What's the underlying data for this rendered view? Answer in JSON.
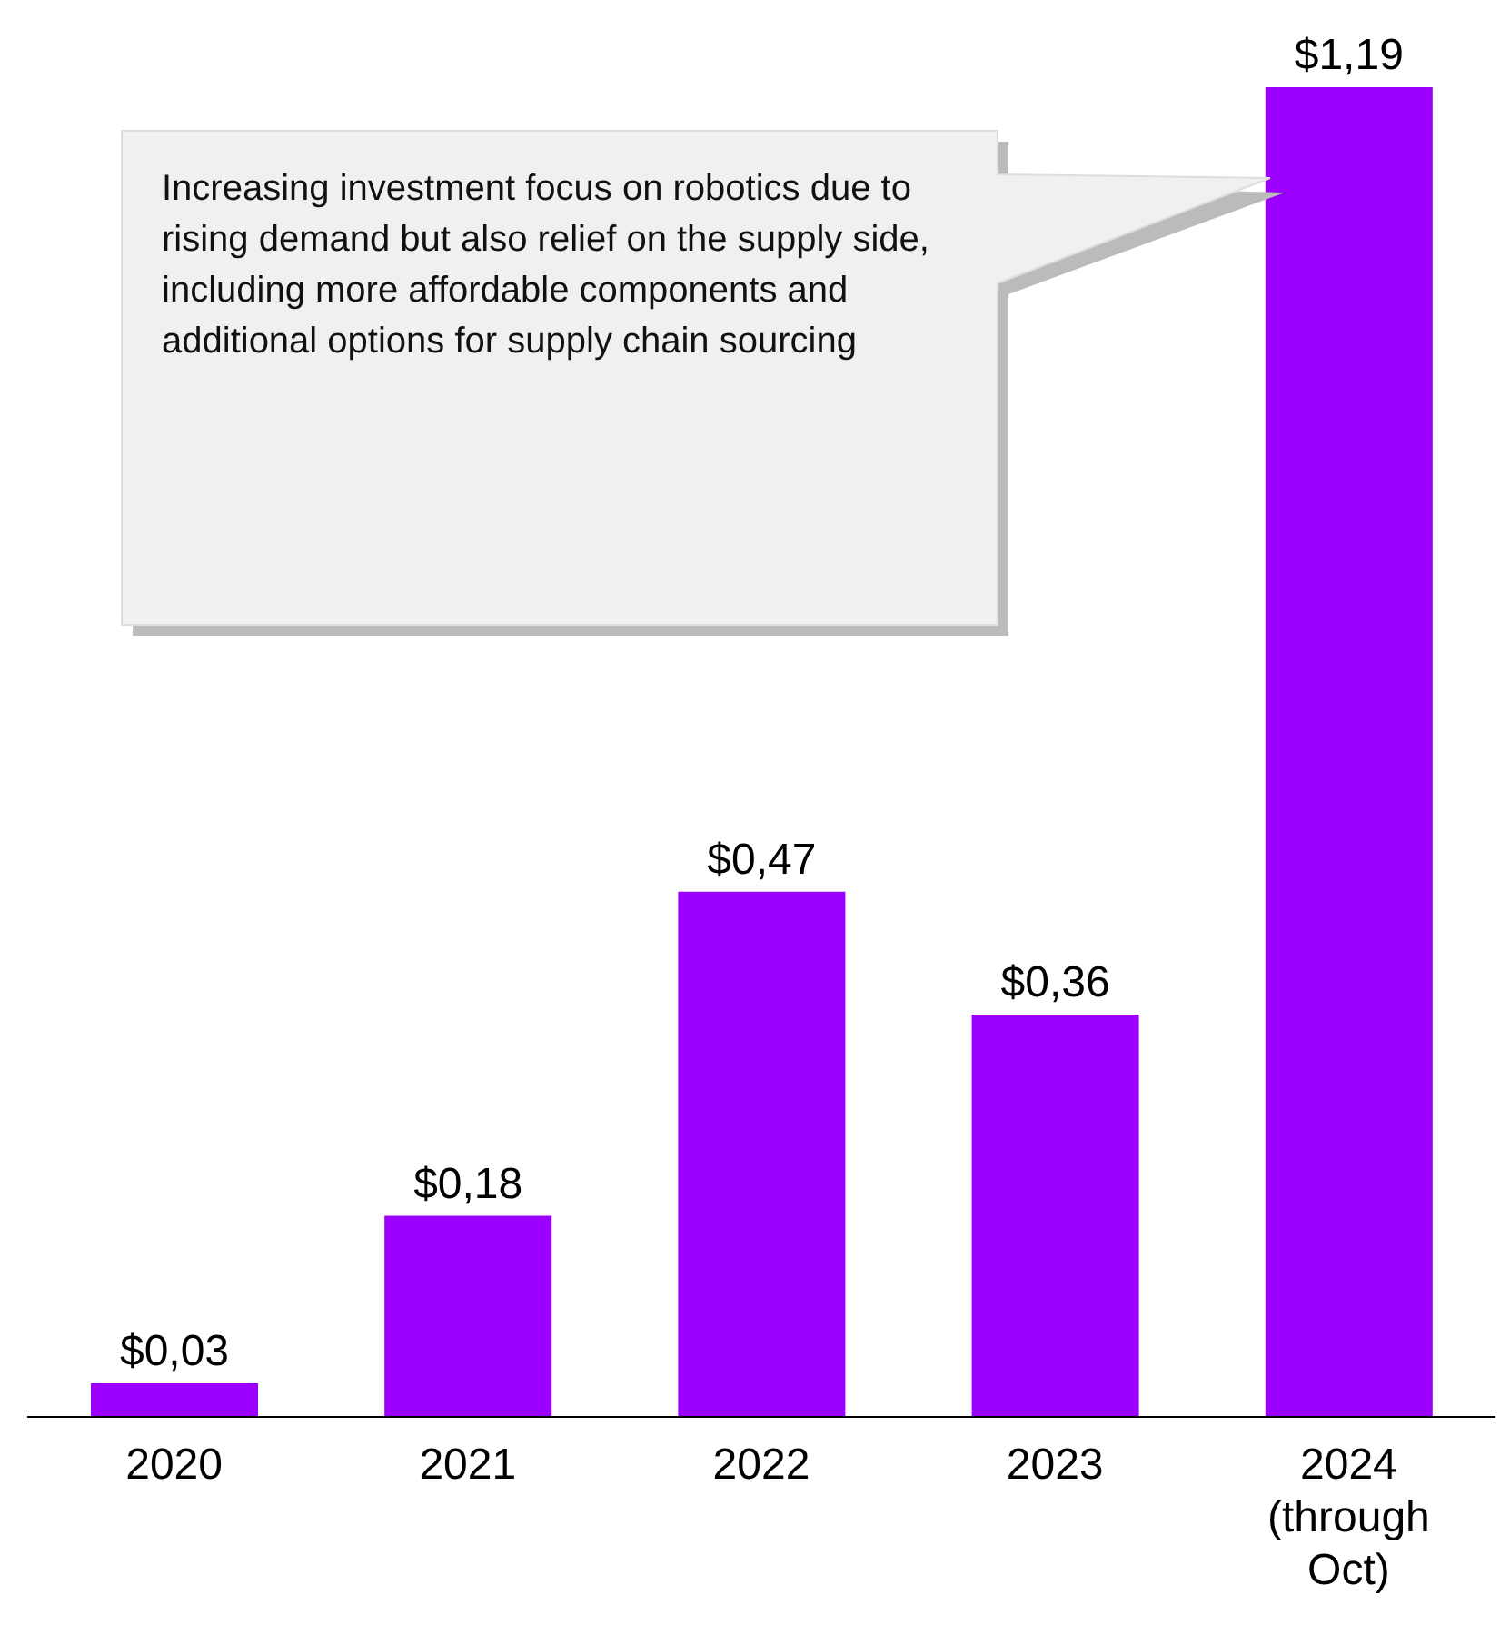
{
  "chart_data": {
    "type": "bar",
    "categories": [
      "2020",
      "2021",
      "2022",
      "2023",
      "2024 (through Oct)"
    ],
    "values": [
      0.03,
      0.18,
      0.47,
      0.36,
      1.19
    ],
    "value_labels": [
      "$0,03",
      "$0,18",
      "$0,47",
      "$0,36",
      "$1,19"
    ],
    "color": "#9b00ff",
    "annotations": [
      "Increasing investment focus on robotics due to rising demand but also relief on the supply side, including more affordable components and additional options for supply chain sourcing"
    ],
    "grid": false,
    "legend": false
  }
}
